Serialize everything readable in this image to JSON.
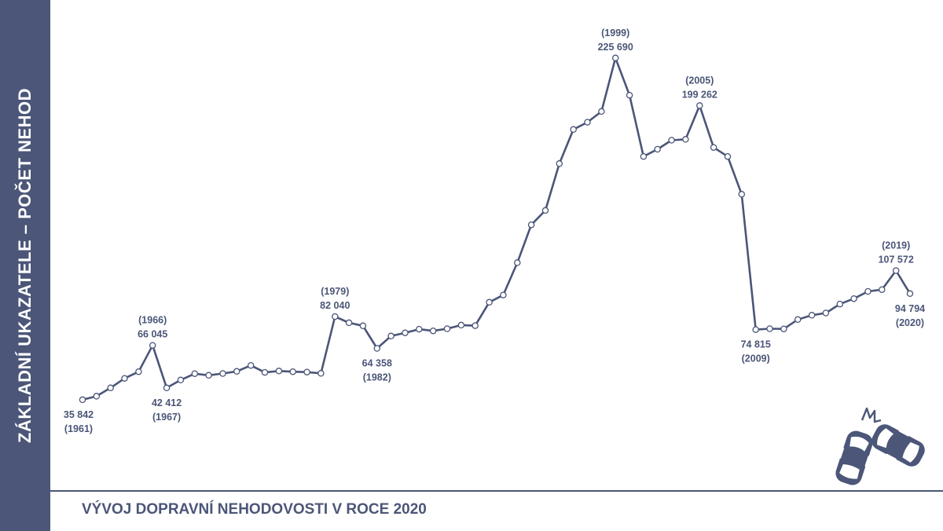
{
  "sidebar": {
    "title": "ZÁKLADNÍ UKAZATELE – POČET NEHOD"
  },
  "footer": {
    "title": "VÝVOJ DOPRAVNÍ NEHODOVOSTI V ROCE 2020"
  },
  "icons": {
    "cars": "car-crash-icon"
  },
  "colors": {
    "accent": "#4b5678",
    "marker_fill": "#ffffff"
  },
  "chart_data": {
    "type": "line",
    "title": "",
    "xlabel": "",
    "ylabel": "",
    "grid": false,
    "legend": "none",
    "x": [
      1961,
      1962,
      1963,
      1964,
      1965,
      1966,
      1967,
      1968,
      1969,
      1970,
      1971,
      1972,
      1973,
      1974,
      1975,
      1976,
      1977,
      1978,
      1979,
      1980,
      1981,
      1982,
      1983,
      1984,
      1985,
      1986,
      1987,
      1988,
      1989,
      1990,
      1991,
      1992,
      1993,
      1994,
      1995,
      1996,
      1997,
      1998,
      1999,
      2000,
      2001,
      2002,
      2003,
      2004,
      2005,
      2006,
      2007,
      2008,
      2009,
      2010,
      2011,
      2012,
      2013,
      2014,
      2015,
      2016,
      2017,
      2018,
      2019,
      2020
    ],
    "values": [
      35842,
      37800,
      42400,
      47700,
      51400,
      66045,
      42412,
      46800,
      50300,
      49400,
      50400,
      51600,
      54900,
      51000,
      51800,
      51400,
      51200,
      50500,
      82040,
      78600,
      76900,
      64358,
      71200,
      73000,
      75000,
      74100,
      75300,
      77300,
      77000,
      90000,
      94000,
      112000,
      133000,
      141000,
      167000,
      186000,
      190000,
      196000,
      225690,
      205000,
      171000,
      175000,
      180000,
      180500,
      199262,
      176000,
      171000,
      150000,
      74815,
      75300,
      75200,
      80400,
      82800,
      84000,
      89000,
      92000,
      96000,
      97000,
      107572,
      94794
    ],
    "xlim": [
      1961,
      2020
    ],
    "ylim": [
      0,
      240000
    ],
    "annotations": [
      {
        "year": 1961,
        "value": 35842,
        "value_text": "35 842",
        "year_text": "(1961)",
        "position": "below",
        "order": "value-first"
      },
      {
        "year": 1966,
        "value": 66045,
        "value_text": "66 045",
        "year_text": "(1966)",
        "position": "above",
        "order": "year-first"
      },
      {
        "year": 1967,
        "value": 42412,
        "value_text": "42 412",
        "year_text": "(1967)",
        "position": "below",
        "order": "value-first"
      },
      {
        "year": 1979,
        "value": 82040,
        "value_text": "82 040",
        "year_text": "(1979)",
        "position": "above",
        "order": "year-first"
      },
      {
        "year": 1982,
        "value": 64358,
        "value_text": "64 358",
        "year_text": "(1982)",
        "position": "below",
        "order": "value-first"
      },
      {
        "year": 1999,
        "value": 225690,
        "value_text": "225 690",
        "year_text": "(1999)",
        "position": "above",
        "order": "year-first"
      },
      {
        "year": 2005,
        "value": 199262,
        "value_text": "199 262",
        "year_text": "(2005)",
        "position": "above",
        "order": "year-first"
      },
      {
        "year": 2009,
        "value": 74815,
        "value_text": "74 815",
        "year_text": "(2009)",
        "position": "below",
        "order": "value-first"
      },
      {
        "year": 2019,
        "value": 107572,
        "value_text": "107 572",
        "year_text": "(2019)",
        "position": "above",
        "order": "year-first"
      },
      {
        "year": 2020,
        "value": 94794,
        "value_text": "94 794",
        "year_text": "(2020)",
        "position": "below",
        "order": "value-first"
      }
    ]
  }
}
